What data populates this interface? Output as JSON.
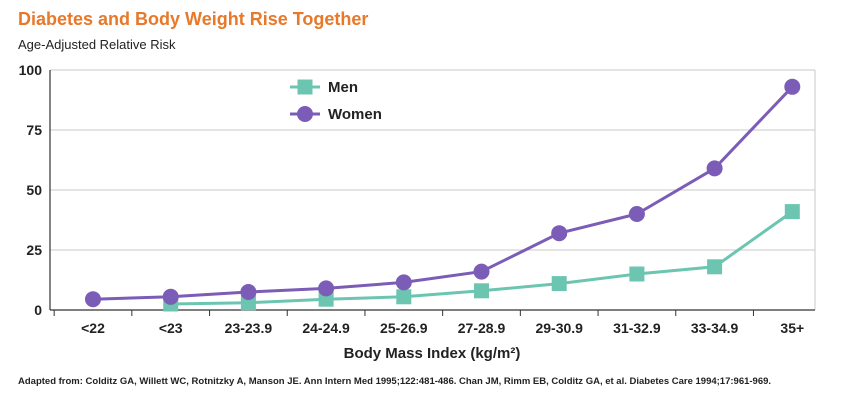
{
  "title": "Diabetes and Body Weight Rise Together",
  "source": "Adapted from: Colditz GA, Willett WC, Rotnitzky A, Manson JE. Ann Intern Med 1995;122:481-486. Chan JM, Rimm EB, Colditz GA, et al. Diabetes Care 1994;17:961-969.",
  "chart_data": {
    "type": "line",
    "title": "Diabetes and Body Weight Rise Together",
    "ylabel": "Age-Adjusted Relative Risk",
    "xlabel": "Body Mass Index (kg/m²)",
    "categories": [
      "<22",
      "<23",
      "23-23.9",
      "24-24.9",
      "25-26.9",
      "27-28.9",
      "29-30.9",
      "31-32.9",
      "33-34.9",
      "35+"
    ],
    "ylim": [
      0,
      100
    ],
    "yticks": [
      0,
      25,
      50,
      75,
      100
    ],
    "grid": true,
    "legend_position": "top-center",
    "series": [
      {
        "name": "Men",
        "color": "#6cc5b0",
        "marker": "square",
        "values": [
          null,
          2.5,
          3,
          4.5,
          5.5,
          8,
          11,
          15,
          18,
          41
        ]
      },
      {
        "name": "Women",
        "color": "#7b5cb6",
        "marker": "circle",
        "values": [
          4.5,
          5.5,
          7.5,
          9,
          11.5,
          16,
          32,
          40,
          59,
          93
        ]
      }
    ]
  }
}
